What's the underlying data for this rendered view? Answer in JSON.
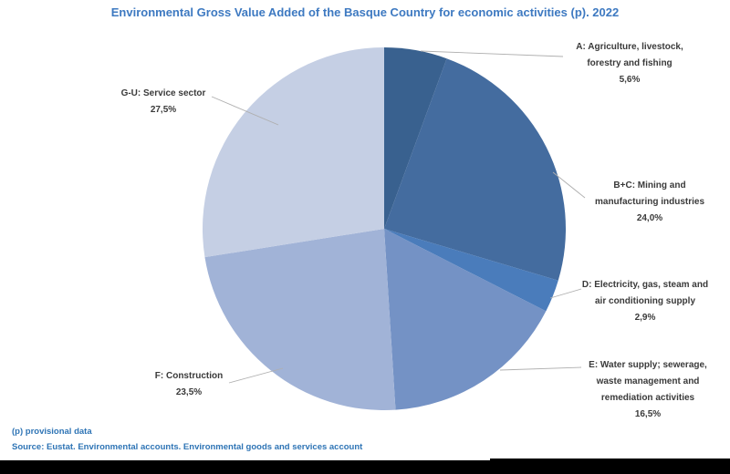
{
  "title": "Environmental Gross Value Added of the Basque Country for economic activities (p). 2022",
  "footer": {
    "note": "(p) provisional data",
    "source": "Source: Eustat. Environmental accounts. Environmental goods and services account"
  },
  "colors": {
    "title_text": "#3d79c1",
    "footer_text": "#2e74b5",
    "label_text": "#3a3a3a",
    "leader_line": "#afafaf",
    "bottom_bar": "#000000",
    "background": "#ffffff"
  },
  "chart_data": {
    "type": "pie",
    "title": "Environmental Gross Value Added of the Basque Country for economic activities (p). 2022",
    "unit": "%",
    "direction": "clockwise",
    "start_angle_deg": 0,
    "legend_position": "outside-labels",
    "slices": [
      {
        "id": "A",
        "label_lines": [
          "A: Agriculture, livestock,",
          "forestry and fishing"
        ],
        "pct_label": "5,6%",
        "value": 5.6,
        "color": "#39618f"
      },
      {
        "id": "B+C",
        "label_lines": [
          "B+C: Mining and",
          "manufacturing industries"
        ],
        "pct_label": "24,0%",
        "value": 24.0,
        "color": "#446c9f"
      },
      {
        "id": "D",
        "label_lines": [
          "D: Electricity, gas, steam and",
          "air conditioning supply"
        ],
        "pct_label": "2,9%",
        "value": 2.9,
        "color": "#4a7cbb"
      },
      {
        "id": "E",
        "label_lines": [
          "E: Water supply; sewerage,",
          "waste management and",
          "remediation activities"
        ],
        "pct_label": "16,5%",
        "value": 16.5,
        "color": "#7492c5"
      },
      {
        "id": "F",
        "label_lines": [
          "F: Construction"
        ],
        "pct_label": "23,5%",
        "value": 23.5,
        "color": "#a1b3d7"
      },
      {
        "id": "G-U",
        "label_lines": [
          "G-U: Service sector"
        ],
        "pct_label": "27,5%",
        "value": 27.5,
        "color": "#c5cfe4"
      }
    ]
  }
}
